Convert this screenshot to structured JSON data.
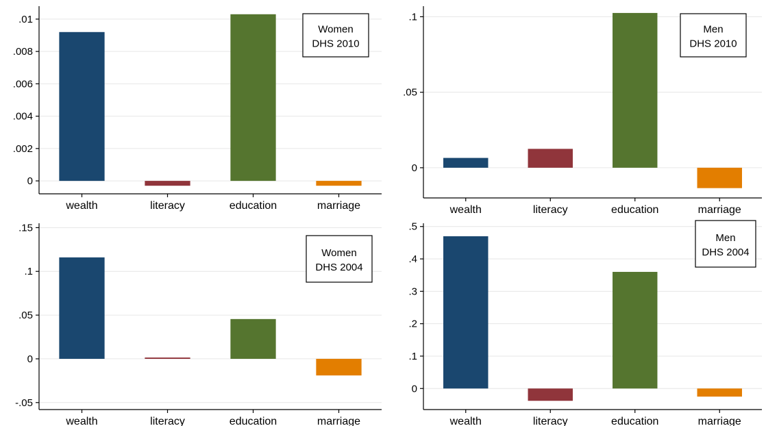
{
  "chart_data": [
    {
      "type": "bar",
      "categories": [
        "wealth",
        "literacy",
        "education",
        "marriage"
      ],
      "values": [
        0.0092,
        -0.0003,
        0.0103,
        -0.0003
      ],
      "ylim": [
        -0.0008,
        0.0108
      ],
      "yticks": [
        0,
        0.002,
        0.004,
        0.006,
        0.008,
        0.01
      ],
      "ytick_labels": [
        "0",
        ".002",
        ".004",
        ".006",
        ".008",
        ".01"
      ],
      "annotation": [
        "Women",
        "DHS 2010"
      ],
      "legend_position": "top-right",
      "grid": true
    },
    {
      "type": "bar",
      "categories": [
        "wealth",
        "literacy",
        "education",
        "marriage"
      ],
      "values": [
        0.0065,
        0.0125,
        0.1025,
        -0.0135
      ],
      "ylim": [
        -0.02,
        0.107
      ],
      "yticks": [
        0,
        0.05,
        0.1
      ],
      "ytick_labels": [
        "0",
        ".05",
        ".1"
      ],
      "annotation": [
        "Men",
        "DHS 2010"
      ],
      "legend_position": "top-right",
      "grid": true
    },
    {
      "type": "bar",
      "categories": [
        "wealth",
        "literacy",
        "education",
        "marriage"
      ],
      "values": [
        0.116,
        0.0015,
        0.0455,
        -0.019
      ],
      "ylim": [
        -0.058,
        0.155
      ],
      "yticks": [
        -0.05,
        0,
        0.05,
        0.1,
        0.15
      ],
      "ytick_labels": [
        "-.05",
        "0",
        ".05",
        ".1",
        ".15"
      ],
      "annotation": [
        "Women",
        "DHS 2004"
      ],
      "legend_position": "top-right",
      "grid": true
    },
    {
      "type": "bar",
      "categories": [
        "wealth",
        "literacy",
        "education",
        "marriage"
      ],
      "values": [
        0.47,
        -0.038,
        0.36,
        -0.025
      ],
      "ylim": [
        -0.065,
        0.51
      ],
      "yticks": [
        0,
        0.1,
        0.2,
        0.3,
        0.4,
        0.5
      ],
      "ytick_labels": [
        "0",
        ".1",
        ".2",
        ".3",
        ".4",
        ".5"
      ],
      "annotation": [
        "Men",
        "DHS 2004"
      ],
      "legend_position": "top-right",
      "grid": true
    }
  ],
  "colors": {
    "wealth": "#1a476f",
    "literacy": "#90353b",
    "education": "#55752f",
    "marriage": "#e37e00"
  }
}
